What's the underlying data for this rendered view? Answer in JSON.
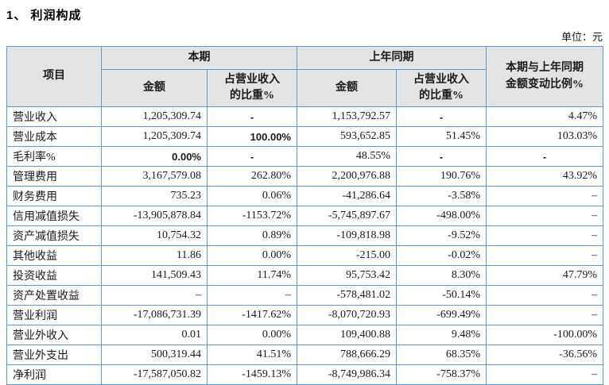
{
  "title": "1、 利润构成",
  "unit_label": "单位：元",
  "colors": {
    "table_border": "#5b9bd5",
    "header_bg": "#e3e3e3",
    "text": "#1a1a1a"
  },
  "table": {
    "headers": {
      "item": "项目",
      "current_period": "本期",
      "prior_period": "上年同期",
      "amount": "金额",
      "pct_of_revenue": "占营业收入\n的比重%",
      "change_ratio": "本期与上年同期\n金额变动比例%"
    },
    "rows": [
      {
        "cells": [
          {
            "t": "营业收入",
            "a": "left"
          },
          {
            "t": "1,205,309.74",
            "a": "right"
          },
          {
            "t": "-",
            "a": "center",
            "f": "alt"
          },
          {
            "t": "1,153,792.57",
            "a": "right"
          },
          {
            "t": "-",
            "a": "center",
            "f": "alt"
          },
          {
            "t": "4.47%",
            "a": "right"
          }
        ]
      },
      {
        "cells": [
          {
            "t": "营业成本",
            "a": "left"
          },
          {
            "t": "1,205,309.74",
            "a": "right"
          },
          {
            "t": "100.00%",
            "a": "right",
            "f": "alt"
          },
          {
            "t": "593,652.85",
            "a": "right"
          },
          {
            "t": "51.45%",
            "a": "right"
          },
          {
            "t": "103.03%",
            "a": "right"
          }
        ]
      },
      {
        "cells": [
          {
            "t": "毛利率%",
            "a": "left"
          },
          {
            "t": "0.00%",
            "a": "right",
            "f": "alt"
          },
          {
            "t": "-",
            "a": "center",
            "f": "alt"
          },
          {
            "t": "48.55%",
            "a": "right"
          },
          {
            "t": "-",
            "a": "center",
            "f": "alt"
          },
          {
            "t": "-",
            "a": "center",
            "f": "alt"
          }
        ]
      },
      {
        "cells": [
          {
            "t": "管理费用",
            "a": "left"
          },
          {
            "t": "3,167,579.08",
            "a": "right"
          },
          {
            "t": "262.80%",
            "a": "right"
          },
          {
            "t": "2,200,976.88",
            "a": "right"
          },
          {
            "t": "190.76%",
            "a": "right"
          },
          {
            "t": "43.92%",
            "a": "right"
          }
        ]
      },
      {
        "cells": [
          {
            "t": "财务费用",
            "a": "left"
          },
          {
            "t": "735.23",
            "a": "right"
          },
          {
            "t": "0.06%",
            "a": "right"
          },
          {
            "t": "-41,286.64",
            "a": "right"
          },
          {
            "t": "-3.58%",
            "a": "right"
          },
          {
            "t": "–",
            "a": "right"
          }
        ]
      },
      {
        "cells": [
          {
            "t": "信用减值损失",
            "a": "left"
          },
          {
            "t": "-13,905,878.84",
            "a": "right"
          },
          {
            "t": "-1153.72%",
            "a": "right"
          },
          {
            "t": "-5,745,897.67",
            "a": "right"
          },
          {
            "t": "-498.00%",
            "a": "right"
          },
          {
            "t": "–",
            "a": "right"
          }
        ]
      },
      {
        "cells": [
          {
            "t": "资产减值损失",
            "a": "left"
          },
          {
            "t": "10,754.32",
            "a": "right"
          },
          {
            "t": "0.89%",
            "a": "right"
          },
          {
            "t": "-109,818.98",
            "a": "right"
          },
          {
            "t": "-9.52%",
            "a": "right"
          },
          {
            "t": "–",
            "a": "right"
          }
        ]
      },
      {
        "cells": [
          {
            "t": "其他收益",
            "a": "left"
          },
          {
            "t": "11.86",
            "a": "right"
          },
          {
            "t": "0.00%",
            "a": "right"
          },
          {
            "t": "-215.00",
            "a": "right"
          },
          {
            "t": "-0.02%",
            "a": "right"
          },
          {
            "t": "–",
            "a": "right"
          }
        ]
      },
      {
        "cells": [
          {
            "t": "投资收益",
            "a": "left"
          },
          {
            "t": "141,509.43",
            "a": "right"
          },
          {
            "t": "11.74%",
            "a": "right"
          },
          {
            "t": "95,753.42",
            "a": "right"
          },
          {
            "t": "8.30%",
            "a": "right"
          },
          {
            "t": "47.79%",
            "a": "right"
          }
        ]
      },
      {
        "cells": [
          {
            "t": "资产处置收益",
            "a": "left"
          },
          {
            "t": "–",
            "a": "right"
          },
          {
            "t": "–",
            "a": "right"
          },
          {
            "t": "-578,481.02",
            "a": "right"
          },
          {
            "t": "-50.14%",
            "a": "right"
          },
          {
            "t": "–",
            "a": "right"
          }
        ]
      },
      {
        "cells": [
          {
            "t": "营业利润",
            "a": "left"
          },
          {
            "t": "-17,086,731.39",
            "a": "right"
          },
          {
            "t": "-1417.62%",
            "a": "right"
          },
          {
            "t": "-8,070,720.93",
            "a": "right"
          },
          {
            "t": "-699.49%",
            "a": "right"
          },
          {
            "t": "–",
            "a": "right"
          }
        ]
      },
      {
        "cells": [
          {
            "t": "营业外收入",
            "a": "left"
          },
          {
            "t": "0.01",
            "a": "right"
          },
          {
            "t": "0.00%",
            "a": "right"
          },
          {
            "t": "109,400.88",
            "a": "right"
          },
          {
            "t": "9.48%",
            "a": "right"
          },
          {
            "t": "-100.00%",
            "a": "right"
          }
        ]
      },
      {
        "cells": [
          {
            "t": "营业外支出",
            "a": "left"
          },
          {
            "t": "500,319.44",
            "a": "right"
          },
          {
            "t": "41.51%",
            "a": "right"
          },
          {
            "t": "788,666.29",
            "a": "right"
          },
          {
            "t": "68.35%",
            "a": "right"
          },
          {
            "t": "-36.56%",
            "a": "right"
          }
        ]
      },
      {
        "cells": [
          {
            "t": "净利润",
            "a": "left"
          },
          {
            "t": "-17,587,050.82",
            "a": "right"
          },
          {
            "t": "-1459.13%",
            "a": "right"
          },
          {
            "t": "-8,749,986.34",
            "a": "right"
          },
          {
            "t": "-758.37%",
            "a": "right"
          },
          {
            "t": "–",
            "a": "right"
          }
        ]
      }
    ]
  }
}
